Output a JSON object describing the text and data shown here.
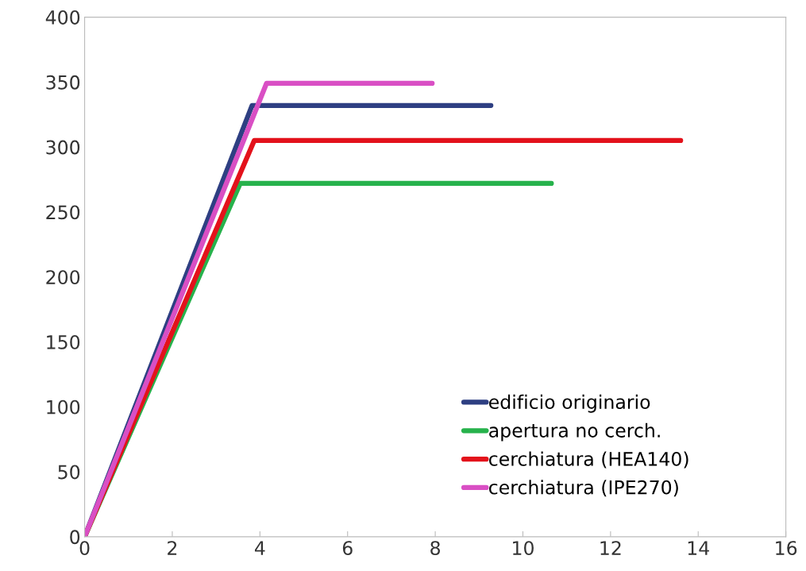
{
  "chart_data": {
    "type": "line",
    "xlim": [
      0,
      16
    ],
    "xticks": [
      0,
      2,
      4,
      6,
      8,
      10,
      12,
      14,
      16
    ],
    "ylim": [
      0,
      400
    ],
    "yticks": [
      0,
      50,
      100,
      150,
      200,
      250,
      300,
      350,
      400
    ],
    "grid": false,
    "legend": "bottom right",
    "marker": "none",
    "line_style": "solid",
    "series": [
      {
        "name": "edificio originario",
        "color": "#2e3f82",
        "x": [
          0,
          3.82,
          9.27
        ],
        "values": [
          0,
          332,
          332
        ]
      },
      {
        "name": "apertura no cerch.",
        "color": "#27b24c",
        "x": [
          0,
          3.55,
          10.65
        ],
        "values": [
          0,
          272,
          272
        ]
      },
      {
        "name": "cerchiatura (HEA140)",
        "color": "#e3121b",
        "x": [
          0,
          3.87,
          13.6
        ],
        "values": [
          0,
          305,
          305
        ]
      },
      {
        "name": "cerchiatura (IPE270)",
        "color": "#d94fc4",
        "x": [
          0,
          4.15,
          7.93
        ],
        "values": [
          0,
          349,
          349
        ]
      }
    ]
  }
}
